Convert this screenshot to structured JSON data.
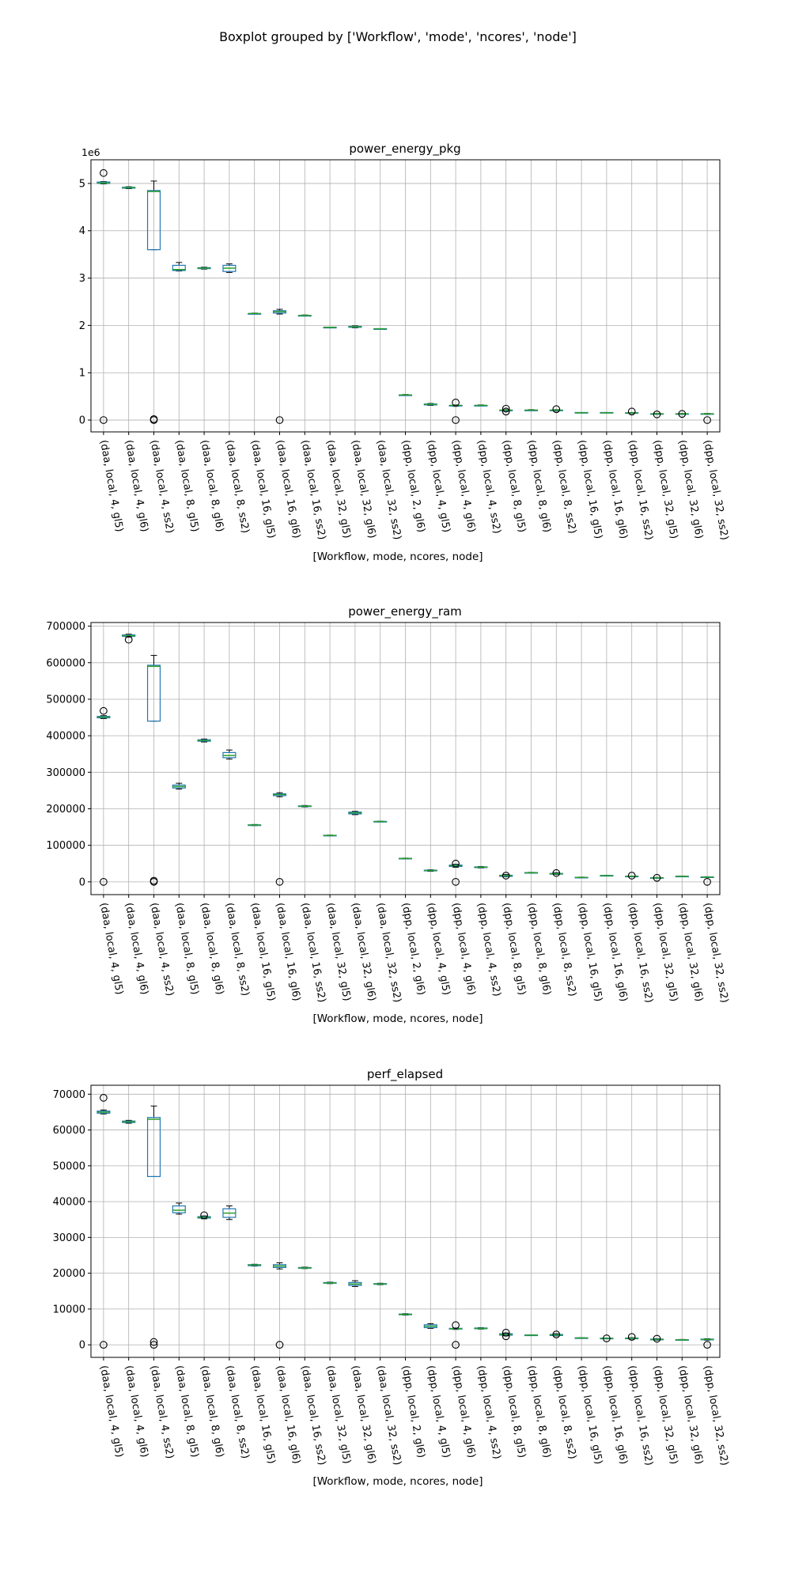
{
  "suptitle": "Boxplot grouped by ['Workflow', 'mode', 'ncores', 'node']",
  "colors": {
    "box": "#1f77b4",
    "median": "#2ca02c",
    "grid": "#b0b0b0",
    "axis": "#000000"
  },
  "chart_data": [
    {
      "type": "box",
      "title": "power_energy_pkg",
      "xlabel": "[Workflow, mode, ncores, node]",
      "ylabel": "",
      "offset_text": "1e6",
      "grid": true,
      "ylim": [
        -250000,
        5500000
      ],
      "yticks": [
        0,
        1000000,
        2000000,
        3000000,
        4000000,
        5000000
      ],
      "ytick_labels": [
        "0",
        "1",
        "2",
        "3",
        "4",
        "5"
      ],
      "categories": [
        "(daa, local, 4, gl5)",
        "(daa, local, 4, gl6)",
        "(daa, local, 4, ss2)",
        "(daa, local, 8, gl5)",
        "(daa, local, 8, gl6)",
        "(daa, local, 8, ss2)",
        "(daa, local, 16, gl5)",
        "(daa, local, 16, gl6)",
        "(daa, local, 16, ss2)",
        "(daa, local, 32, gl5)",
        "(daa, local, 32, gl6)",
        "(daa, local, 32, ss2)",
        "(dpp, local, 2, gl6)",
        "(dpp, local, 4, gl5)",
        "(dpp, local, 4, gl6)",
        "(dpp, local, 4, ss2)",
        "(dpp, local, 8, gl5)",
        "(dpp, local, 8, gl6)",
        "(dpp, local, 8, ss2)",
        "(dpp, local, 16, gl5)",
        "(dpp, local, 16, gl6)",
        "(dpp, local, 16, ss2)",
        "(dpp, local, 32, gl5)",
        "(dpp, local, 32, gl6)",
        "(dpp, local, 32, ss2)"
      ],
      "boxes": [
        {
          "whislo": 4990000,
          "q1": 5000000,
          "med": 5010000,
          "q3": 5030000,
          "whishi": 5040000,
          "fliers": [
            0,
            5220000
          ]
        },
        {
          "whislo": 4890000,
          "q1": 4900000,
          "med": 4910000,
          "q3": 4920000,
          "whishi": 4930000,
          "fliers": []
        },
        {
          "whislo": 3600000,
          "q1": 3600000,
          "med": 4830000,
          "q3": 4850000,
          "whishi": 5050000,
          "fliers": [
            0,
            20000
          ]
        },
        {
          "whislo": 3150000,
          "q1": 3160000,
          "med": 3180000,
          "q3": 3270000,
          "whishi": 3330000,
          "fliers": []
        },
        {
          "whislo": 3190000,
          "q1": 3200000,
          "med": 3210000,
          "q3": 3220000,
          "whishi": 3230000,
          "fliers": []
        },
        {
          "whislo": 3120000,
          "q1": 3140000,
          "med": 3210000,
          "q3": 3270000,
          "whishi": 3300000,
          "fliers": []
        },
        {
          "whislo": 2240000,
          "q1": 2240000,
          "med": 2250000,
          "q3": 2250000,
          "whishi": 2260000,
          "fliers": []
        },
        {
          "whislo": 2240000,
          "q1": 2260000,
          "med": 2290000,
          "q3": 2310000,
          "whishi": 2340000,
          "fliers": [
            0
          ]
        },
        {
          "whislo": 2200000,
          "q1": 2200000,
          "med": 2210000,
          "q3": 2210000,
          "whishi": 2220000,
          "fliers": []
        },
        {
          "whislo": 1950000,
          "q1": 1950000,
          "med": 1960000,
          "q3": 1960000,
          "whishi": 1960000,
          "fliers": []
        },
        {
          "whislo": 1950000,
          "q1": 1960000,
          "med": 1970000,
          "q3": 1980000,
          "whishi": 1990000,
          "fliers": []
        },
        {
          "whislo": 1920000,
          "q1": 1920000,
          "med": 1930000,
          "q3": 1930000,
          "whishi": 1930000,
          "fliers": []
        },
        {
          "whislo": 520000,
          "q1": 520000,
          "med": 530000,
          "q3": 530000,
          "whishi": 540000,
          "fliers": []
        },
        {
          "whislo": 310000,
          "q1": 320000,
          "med": 330000,
          "q3": 340000,
          "whishi": 350000,
          "fliers": []
        },
        {
          "whislo": 290000,
          "q1": 300000,
          "med": 310000,
          "q3": 310000,
          "whishi": 320000,
          "fliers": [
            0,
            370000
          ]
        },
        {
          "whislo": 300000,
          "q1": 300000,
          "med": 310000,
          "q3": 310000,
          "whishi": 320000,
          "fliers": []
        },
        {
          "whislo": 190000,
          "q1": 200000,
          "med": 210000,
          "q3": 210000,
          "whishi": 220000,
          "fliers": [
            180000,
            240000
          ]
        },
        {
          "whislo": 200000,
          "q1": 200000,
          "med": 210000,
          "q3": 210000,
          "whishi": 220000,
          "fliers": []
        },
        {
          "whislo": 190000,
          "q1": 200000,
          "med": 210000,
          "q3": 210000,
          "whishi": 220000,
          "fliers": [
            230000
          ]
        },
        {
          "whislo": 150000,
          "q1": 150000,
          "med": 155000,
          "q3": 160000,
          "whishi": 160000,
          "fliers": []
        },
        {
          "whislo": 150000,
          "q1": 150000,
          "med": 155000,
          "q3": 160000,
          "whishi": 160000,
          "fliers": []
        },
        {
          "whislo": 140000,
          "q1": 145000,
          "med": 150000,
          "q3": 155000,
          "whishi": 160000,
          "fliers": [
            180000
          ]
        },
        {
          "whislo": 120000,
          "q1": 125000,
          "med": 130000,
          "q3": 135000,
          "whishi": 140000,
          "fliers": [
            120000
          ]
        },
        {
          "whislo": 120000,
          "q1": 125000,
          "med": 130000,
          "q3": 135000,
          "whishi": 140000,
          "fliers": [
            130000
          ]
        },
        {
          "whislo": 120000,
          "q1": 125000,
          "med": 130000,
          "q3": 135000,
          "whishi": 140000,
          "fliers": [
            0
          ]
        }
      ]
    },
    {
      "type": "box",
      "title": "power_energy_ram",
      "xlabel": "[Workflow, mode, ncores, node]",
      "ylabel": "",
      "offset_text": "",
      "grid": true,
      "ylim": [
        -35000,
        710000
      ],
      "yticks": [
        0,
        100000,
        200000,
        300000,
        400000,
        500000,
        600000,
        700000
      ],
      "ytick_labels": [
        "0",
        "100000",
        "200000",
        "300000",
        "400000",
        "500000",
        "600000",
        "700000"
      ],
      "categories": [
        "(daa, local, 4, gl5)",
        "(daa, local, 4, gl6)",
        "(daa, local, 4, ss2)",
        "(daa, local, 8, gl5)",
        "(daa, local, 8, gl6)",
        "(daa, local, 8, ss2)",
        "(daa, local, 16, gl5)",
        "(daa, local, 16, gl6)",
        "(daa, local, 16, ss2)",
        "(daa, local, 32, gl5)",
        "(daa, local, 32, gl6)",
        "(daa, local, 32, ss2)",
        "(dpp, local, 2, gl6)",
        "(dpp, local, 4, gl5)",
        "(dpp, local, 4, gl6)",
        "(dpp, local, 4, ss2)",
        "(dpp, local, 8, gl5)",
        "(dpp, local, 8, gl6)",
        "(dpp, local, 8, ss2)",
        "(dpp, local, 16, gl5)",
        "(dpp, local, 16, gl6)",
        "(dpp, local, 16, ss2)",
        "(dpp, local, 32, gl5)",
        "(dpp, local, 32, gl6)",
        "(dpp, local, 32, ss2)"
      ],
      "boxes": [
        {
          "whislo": 447000,
          "q1": 449000,
          "med": 451000,
          "q3": 453000,
          "whishi": 455000,
          "fliers": [
            0,
            468000
          ]
        },
        {
          "whislo": 670000,
          "q1": 672000,
          "med": 674000,
          "q3": 676000,
          "whishi": 678000,
          "fliers": [
            663000
          ]
        },
        {
          "whislo": 440000,
          "q1": 440000,
          "med": 590000,
          "q3": 593000,
          "whishi": 620000,
          "fliers": [
            0,
            3000
          ]
        },
        {
          "whislo": 254000,
          "q1": 257000,
          "med": 261000,
          "q3": 265000,
          "whishi": 270000,
          "fliers": []
        },
        {
          "whislo": 383000,
          "q1": 385000,
          "med": 387000,
          "q3": 389000,
          "whishi": 391000,
          "fliers": []
        },
        {
          "whislo": 336000,
          "q1": 340000,
          "med": 346000,
          "q3": 354000,
          "whishi": 361000,
          "fliers": []
        },
        {
          "whislo": 154000,
          "q1": 155000,
          "med": 155500,
          "q3": 156000,
          "whishi": 157000,
          "fliers": []
        },
        {
          "whislo": 233000,
          "q1": 236000,
          "med": 239000,
          "q3": 241000,
          "whishi": 244000,
          "fliers": [
            0
          ]
        },
        {
          "whislo": 205000,
          "q1": 206000,
          "med": 207000,
          "q3": 208000,
          "whishi": 209000,
          "fliers": []
        },
        {
          "whislo": 126000,
          "q1": 126500,
          "med": 127000,
          "q3": 127500,
          "whishi": 128000,
          "fliers": []
        },
        {
          "whislo": 184000,
          "q1": 186000,
          "med": 189000,
          "q3": 191000,
          "whishi": 193000,
          "fliers": []
        },
        {
          "whislo": 164000,
          "q1": 164500,
          "med": 165000,
          "q3": 165500,
          "whishi": 166000,
          "fliers": []
        },
        {
          "whislo": 63000,
          "q1": 63500,
          "med": 64000,
          "q3": 64500,
          "whishi": 65000,
          "fliers": []
        },
        {
          "whislo": 29000,
          "q1": 30000,
          "med": 31000,
          "q3": 32000,
          "whishi": 33000,
          "fliers": []
        },
        {
          "whislo": 40000,
          "q1": 42000,
          "med": 44000,
          "q3": 46000,
          "whishi": 48000,
          "fliers": [
            0,
            50000
          ]
        },
        {
          "whislo": 38000,
          "q1": 39000,
          "med": 40000,
          "q3": 41000,
          "whishi": 42000,
          "fliers": []
        },
        {
          "whislo": 14000,
          "q1": 15000,
          "med": 17000,
          "q3": 18000,
          "whishi": 20000,
          "fliers": [
            17000
          ]
        },
        {
          "whislo": 24000,
          "q1": 24500,
          "med": 25000,
          "q3": 25500,
          "whishi": 26000,
          "fliers": []
        },
        {
          "whislo": 20000,
          "q1": 21000,
          "med": 22000,
          "q3": 23000,
          "whishi": 25000,
          "fliers": [
            24000
          ]
        },
        {
          "whislo": 11000,
          "q1": 11500,
          "med": 12000,
          "q3": 12500,
          "whishi": 13000,
          "fliers": []
        },
        {
          "whislo": 16000,
          "q1": 16500,
          "med": 17000,
          "q3": 17500,
          "whishi": 18000,
          "fliers": []
        },
        {
          "whislo": 14000,
          "q1": 14500,
          "med": 15000,
          "q3": 15500,
          "whishi": 16000,
          "fliers": [
            17000
          ]
        },
        {
          "whislo": 10000,
          "q1": 10500,
          "med": 11000,
          "q3": 11500,
          "whishi": 12000,
          "fliers": [
            11000
          ]
        },
        {
          "whislo": 14000,
          "q1": 14500,
          "med": 15000,
          "q3": 15500,
          "whishi": 16000,
          "fliers": []
        },
        {
          "whislo": 12000,
          "q1": 12500,
          "med": 13000,
          "q3": 13500,
          "whishi": 14000,
          "fliers": [
            0
          ]
        }
      ]
    },
    {
      "type": "box",
      "title": "perf_elapsed",
      "xlabel": "[Workflow, mode, ncores, node]",
      "ylabel": "",
      "offset_text": "",
      "grid": true,
      "ylim": [
        -3500,
        72500
      ],
      "yticks": [
        0,
        10000,
        20000,
        30000,
        40000,
        50000,
        60000,
        70000
      ],
      "ytick_labels": [
        "0",
        "10000",
        "20000",
        "30000",
        "40000",
        "50000",
        "60000",
        "70000"
      ],
      "categories": [
        "(daa, local, 4, gl5)",
        "(daa, local, 4, gl6)",
        "(daa, local, 4, ss2)",
        "(daa, local, 8, gl5)",
        "(daa, local, 8, gl6)",
        "(daa, local, 8, ss2)",
        "(daa, local, 16, gl5)",
        "(daa, local, 16, gl6)",
        "(daa, local, 16, ss2)",
        "(daa, local, 32, gl5)",
        "(daa, local, 32, gl6)",
        "(daa, local, 32, ss2)",
        "(dpp, local, 2, gl6)",
        "(dpp, local, 4, gl5)",
        "(dpp, local, 4, gl6)",
        "(dpp, local, 4, ss2)",
        "(dpp, local, 8, gl5)",
        "(dpp, local, 8, gl6)",
        "(dpp, local, 8, ss2)",
        "(dpp, local, 16, gl5)",
        "(dpp, local, 16, gl6)",
        "(dpp, local, 16, ss2)",
        "(dpp, local, 32, gl5)",
        "(dpp, local, 32, gl6)",
        "(dpp, local, 32, ss2)"
      ],
      "boxes": [
        {
          "whislo": 64500,
          "q1": 64700,
          "med": 65000,
          "q3": 65300,
          "whishi": 65600,
          "fliers": [
            0,
            69000
          ]
        },
        {
          "whislo": 61900,
          "q1": 62100,
          "med": 62300,
          "q3": 62500,
          "whishi": 62700,
          "fliers": []
        },
        {
          "whislo": 47000,
          "q1": 47000,
          "med": 63000,
          "q3": 63500,
          "whishi": 66700,
          "fliers": [
            0,
            800
          ]
        },
        {
          "whislo": 36500,
          "q1": 36900,
          "med": 37600,
          "q3": 38800,
          "whishi": 39600,
          "fliers": []
        },
        {
          "whislo": 35200,
          "q1": 35400,
          "med": 35600,
          "q3": 35800,
          "whishi": 36000,
          "fliers": [
            36200
          ]
        },
        {
          "whislo": 35000,
          "q1": 35600,
          "med": 36800,
          "q3": 38000,
          "whishi": 38800,
          "fliers": []
        },
        {
          "whislo": 22000,
          "q1": 22100,
          "med": 22300,
          "q3": 22400,
          "whishi": 22500,
          "fliers": []
        },
        {
          "whislo": 21200,
          "q1": 21600,
          "med": 22000,
          "q3": 22400,
          "whishi": 22900,
          "fliers": [
            0
          ]
        },
        {
          "whislo": 21300,
          "q1": 21400,
          "med": 21500,
          "q3": 21600,
          "whishi": 21700,
          "fliers": []
        },
        {
          "whislo": 17100,
          "q1": 17200,
          "med": 17300,
          "q3": 17400,
          "whishi": 17500,
          "fliers": []
        },
        {
          "whislo": 16300,
          "q1": 16600,
          "med": 17000,
          "q3": 17400,
          "whishi": 17900,
          "fliers": []
        },
        {
          "whislo": 16800,
          "q1": 16900,
          "med": 17000,
          "q3": 17100,
          "whishi": 17200,
          "fliers": []
        },
        {
          "whislo": 8300,
          "q1": 8400,
          "med": 8500,
          "q3": 8600,
          "whishi": 8700,
          "fliers": []
        },
        {
          "whislo": 4600,
          "q1": 4800,
          "med": 5200,
          "q3": 5600,
          "whishi": 5900,
          "fliers": []
        },
        {
          "whislo": 4300,
          "q1": 4400,
          "med": 4500,
          "q3": 4600,
          "whishi": 4700,
          "fliers": [
            0,
            5500
          ]
        },
        {
          "whislo": 4400,
          "q1": 4500,
          "med": 4600,
          "q3": 4700,
          "whishi": 4800,
          "fliers": []
        },
        {
          "whislo": 2500,
          "q1": 2700,
          "med": 2900,
          "q3": 3100,
          "whishi": 3300,
          "fliers": [
            2400,
            3400
          ]
        },
        {
          "whislo": 2600,
          "q1": 2650,
          "med": 2700,
          "q3": 2750,
          "whishi": 2800,
          "fliers": []
        },
        {
          "whislo": 2500,
          "q1": 2600,
          "med": 2800,
          "q3": 2900,
          "whishi": 3100,
          "fliers": [
            2900
          ]
        },
        {
          "whislo": 1800,
          "q1": 1850,
          "med": 1900,
          "q3": 1950,
          "whishi": 2000,
          "fliers": []
        },
        {
          "whislo": 1700,
          "q1": 1750,
          "med": 1800,
          "q3": 1850,
          "whishi": 1900,
          "fliers": [
            1800
          ]
        },
        {
          "whislo": 1600,
          "q1": 1700,
          "med": 1800,
          "q3": 1900,
          "whishi": 2000,
          "fliers": [
            2200
          ]
        },
        {
          "whislo": 1300,
          "q1": 1400,
          "med": 1500,
          "q3": 1600,
          "whishi": 1700,
          "fliers": [
            1700
          ]
        },
        {
          "whislo": 1300,
          "q1": 1350,
          "med": 1400,
          "q3": 1450,
          "whishi": 1500,
          "fliers": []
        },
        {
          "whislo": 1300,
          "q1": 1400,
          "med": 1500,
          "q3": 1600,
          "whishi": 1700,
          "fliers": [
            0
          ]
        }
      ]
    }
  ]
}
